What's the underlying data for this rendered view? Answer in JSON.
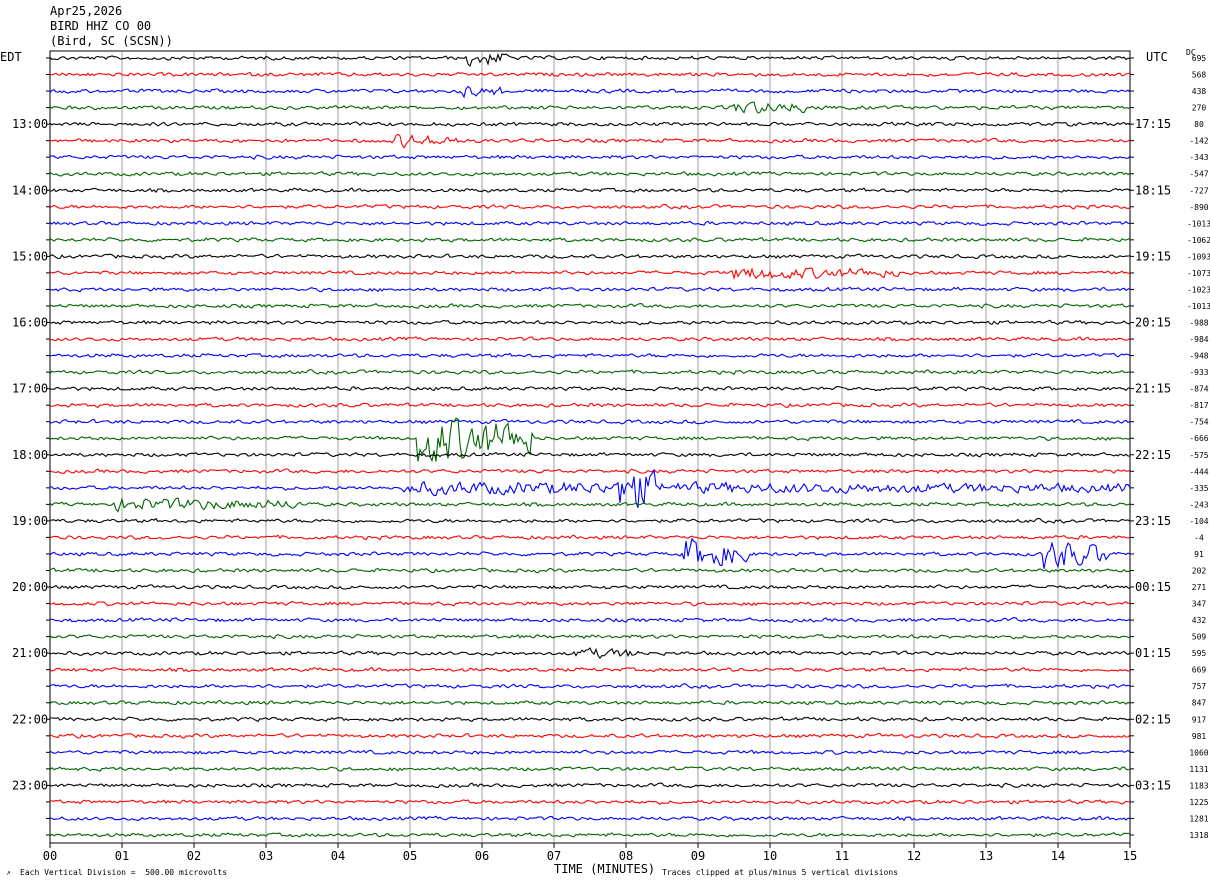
{
  "header": {
    "date": "Apr25,2026",
    "station": "BIRD HHZ CO 00",
    "location": "(Bird, SC (SCSN))"
  },
  "left_tz": "EDT",
  "right_tz": "UTC",
  "dc_label": "DC",
  "footer": {
    "scale_note": "Each Vertical Division =  500.00 microvolts",
    "clip_note": "Traces clipped at plus/minus 5 vertical divisions"
  },
  "chart_data": {
    "type": "line",
    "title": "BIRD HHZ CO 00",
    "xlabel": "TIME (MINUTES)",
    "xlim": [
      0,
      15
    ],
    "x_ticks": [
      "00",
      "01",
      "02",
      "03",
      "04",
      "05",
      "06",
      "07",
      "08",
      "09",
      "10",
      "11",
      "12",
      "13",
      "14",
      "15"
    ],
    "left_hour_labels": [
      "13:00",
      "14:00",
      "15:00",
      "16:00",
      "17:00",
      "18:00",
      "19:00",
      "20:00",
      "21:00",
      "22:00",
      "23:00"
    ],
    "right_hour_labels": [
      "17:15",
      "18:15",
      "19:15",
      "20:15",
      "21:15",
      "22:15",
      "23:15",
      "00:15",
      "01:15",
      "02:15",
      "03:15"
    ],
    "trace_colors": [
      "#000000",
      "#ff0000",
      "#0000ff",
      "#006400"
    ],
    "dc_offsets": [
      "695",
      "568",
      "438",
      "270",
      "80",
      "-142",
      "-343",
      "-547",
      "-727",
      "-890",
      "-1013",
      "-1062",
      "-1093",
      "-1073",
      "-1023",
      "-1013",
      "-988",
      "-984",
      "-948",
      "-933",
      "-874",
      "-817",
      "-754",
      "-666",
      "-575",
      "-444",
      "-335",
      "-243",
      "-104",
      "-4",
      "91",
      "202",
      "271",
      "347",
      "432",
      "509",
      "595",
      "669",
      "757",
      "847",
      "917",
      "981",
      "1060",
      "1131",
      "1183",
      "1225",
      "1281",
      "1318"
    ],
    "traces_count": 48,
    "minutes_per_trace": 15,
    "notable_events": [
      {
        "trace": 2,
        "minute": 5.8,
        "amp": 0.7,
        "dur": 0.5
      },
      {
        "trace": 0,
        "minute": 5.9,
        "amp": 1.2,
        "dur": 0.5
      },
      {
        "trace": 3,
        "minute": 9.6,
        "amp": 0.9,
        "dur": 1.2
      },
      {
        "trace": 5,
        "minute": 4.9,
        "amp": 0.9,
        "dur": 0.8
      },
      {
        "trace": 13,
        "minute": 9.6,
        "amp": 0.9,
        "dur": 2.2
      },
      {
        "trace": 23,
        "minute": 5.2,
        "amp": 4.5,
        "dur": 1.5
      },
      {
        "trace": 26,
        "minute": 5.0,
        "amp": 0.9,
        "dur": 10.0
      },
      {
        "trace": 26,
        "minute": 8.0,
        "amp": 3.5,
        "dur": 0.4
      },
      {
        "trace": 27,
        "minute": 1.0,
        "amp": 0.9,
        "dur": 2.5
      },
      {
        "trace": 30,
        "minute": 8.9,
        "amp": 2.5,
        "dur": 0.8
      },
      {
        "trace": 30,
        "minute": 13.9,
        "amp": 2.5,
        "dur": 0.8
      },
      {
        "trace": 36,
        "minute": 7.4,
        "amp": 0.7,
        "dur": 0.8
      }
    ]
  }
}
